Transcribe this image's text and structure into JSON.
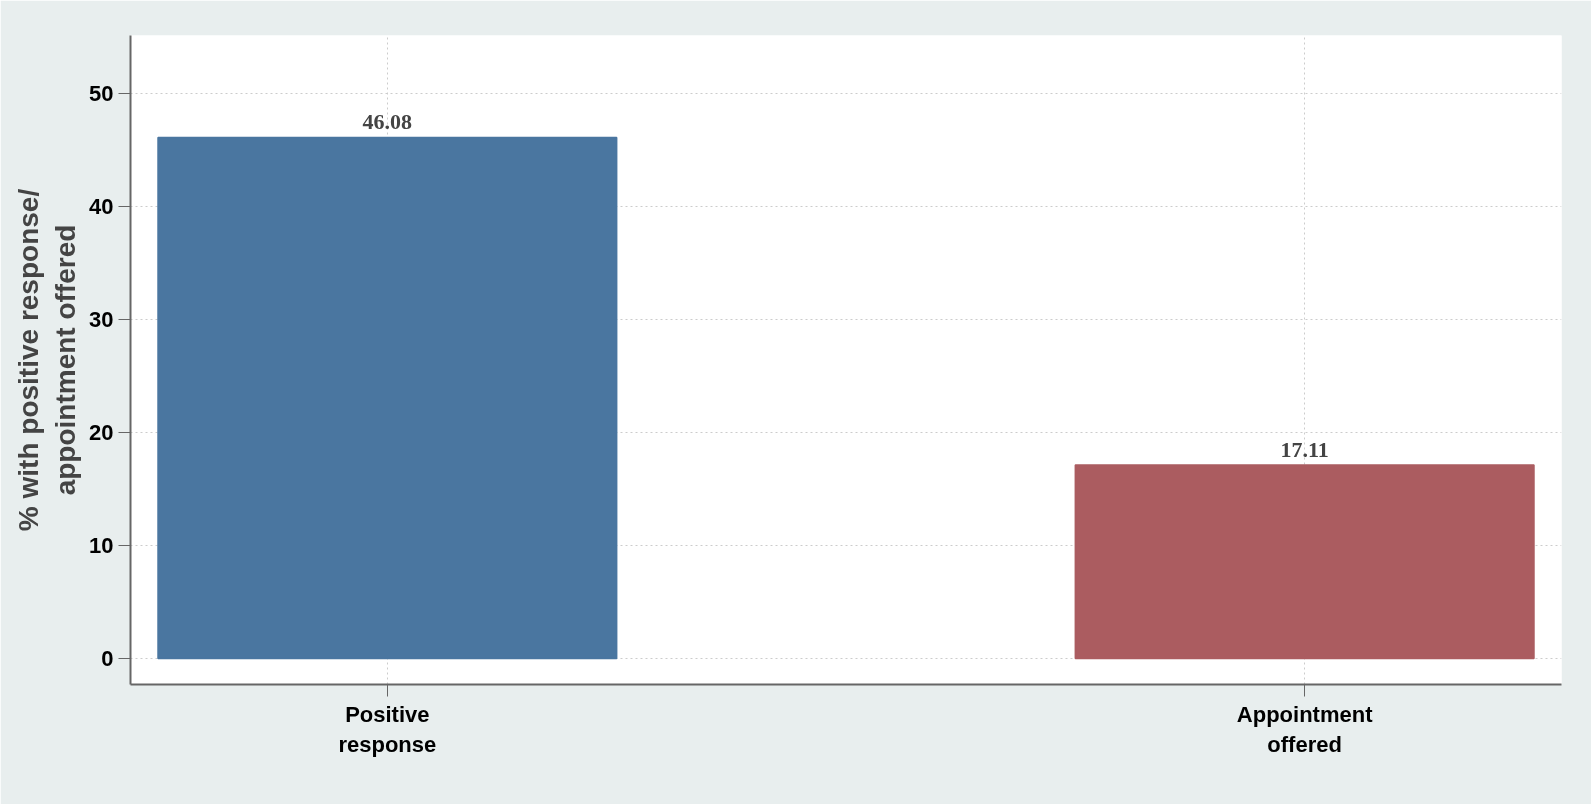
{
  "chart_data": {
    "type": "bar",
    "ylabel": "% with positive response/ appointment offered",
    "categories": [
      "Positive response",
      "Appointment offered"
    ],
    "values": [
      46.08,
      17.11
    ],
    "colors": [
      "#4a76a0",
      "#ab5c60"
    ],
    "ylim": [
      -2.3,
      55.1
    ],
    "yticks": [
      0,
      10,
      20,
      30,
      40,
      50
    ],
    "grid": true,
    "data_labels": true
  }
}
